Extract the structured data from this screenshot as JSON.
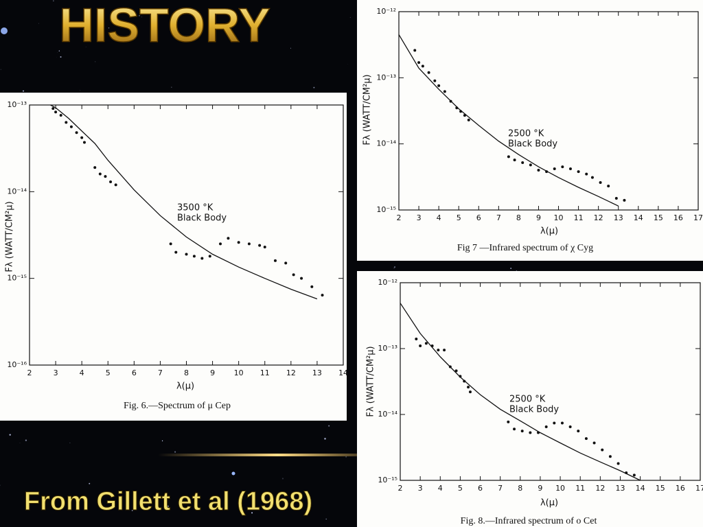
{
  "slide": {
    "title": "HISTORY",
    "citation": "From Gillett et al (1968)"
  },
  "chart_data": [
    {
      "type": "scatter",
      "caption": "Fig. 6.—Spectrum of μ Cep",
      "xlabel": "λ(μ)",
      "ylabel": "Fλ (WATT/CM²μ)",
      "annotation": [
        "3500 °K",
        "Black Body"
      ],
      "log_y": true,
      "xlim": [
        2,
        14
      ],
      "ylim": [
        1e-16,
        1e-13
      ],
      "xticks": [
        2,
        3,
        4,
        5,
        6,
        7,
        8,
        9,
        10,
        11,
        12,
        13,
        14
      ],
      "yticks": [
        {
          "value": 1e-16,
          "label": "10⁻¹⁶"
        },
        {
          "value": 1e-15,
          "label": "10⁻¹⁵"
        },
        {
          "value": 1e-14,
          "label": "10⁻¹⁴"
        },
        {
          "value": 1e-13,
          "label": "10⁻¹³"
        }
      ],
      "series": [
        {
          "mode": "markers",
          "color": "#111",
          "x": [
            2.9,
            3.0,
            3.2,
            3.4,
            3.6,
            3.8,
            4.0,
            4.1,
            4.5,
            4.7,
            4.9,
            5.1,
            5.3,
            7.4,
            7.6,
            8.0,
            8.3,
            8.6,
            8.9,
            9.3,
            9.6,
            10.0,
            10.4,
            10.8,
            11.0,
            11.4,
            11.8,
            12.1,
            12.4,
            12.8,
            13.2
          ],
          "values": [
            9.1e-14,
            8.3e-14,
            7.6e-14,
            6.3e-14,
            5.6e-14,
            4.8e-14,
            4.2e-14,
            3.7e-14,
            1.9e-14,
            1.6e-14,
            1.5e-14,
            1.3e-14,
            1.2e-14,
            2.5e-15,
            2e-15,
            1.9e-15,
            1.8e-15,
            1.7e-15,
            1.8e-15,
            2.5e-15,
            2.9e-15,
            2.6e-15,
            2.5e-15,
            2.4e-15,
            2.3e-15,
            1.6e-15,
            1.5e-15,
            1.1e-15,
            1e-15,
            8e-16,
            6.4e-16
          ]
        },
        {
          "mode": "line",
          "color": "#111",
          "x": [
            2.8,
            3,
            3.5,
            4,
            4.5,
            5,
            6,
            7,
            8,
            9,
            10,
            11,
            12,
            13
          ],
          "values": [
            1e-13,
            9.3e-14,
            7e-14,
            5e-14,
            3.6e-14,
            2.3e-14,
            1.05e-14,
            5.3e-15,
            3e-15,
            1.9e-15,
            1.35e-15,
            1e-15,
            7.5e-16,
            5.8e-16
          ]
        }
      ]
    },
    {
      "type": "scatter",
      "caption": "Fig 7 —Infrared spectrum of χ Cyg",
      "xlabel": "λ(μ)",
      "ylabel": "Fλ (WATT/CM²μ)",
      "annotation": [
        "2500 °K",
        "Black Body"
      ],
      "log_y": true,
      "xlim": [
        2,
        17
      ],
      "ylim": [
        1e-15,
        1e-12
      ],
      "xticks": [
        2,
        3,
        4,
        5,
        6,
        7,
        8,
        9,
        10,
        11,
        12,
        13,
        14,
        15,
        16,
        17
      ],
      "yticks": [
        {
          "value": 1e-15,
          "label": "10⁻¹⁵"
        },
        {
          "value": 1e-14,
          "label": "10⁻¹⁴"
        },
        {
          "value": 1e-13,
          "label": "10⁻¹³"
        },
        {
          "value": 1e-12,
          "label": "10⁻¹²"
        }
      ],
      "series": [
        {
          "mode": "markers",
          "color": "#111",
          "x": [
            2.8,
            3.0,
            3.2,
            3.5,
            3.8,
            4.0,
            4.3,
            4.6,
            4.9,
            5.1,
            5.3,
            5.5,
            7.5,
            7.8,
            8.2,
            8.6,
            9.0,
            9.4,
            9.8,
            10.2,
            10.6,
            11.0,
            11.4,
            11.7,
            12.1,
            12.5,
            12.9,
            13.3
          ],
          "values": [
            2.6e-13,
            1.7e-13,
            1.5e-13,
            1.2e-13,
            9e-14,
            7.6e-14,
            6.2e-14,
            4.4e-14,
            3.5e-14,
            3.1e-14,
            2.7e-14,
            2.3e-14,
            6.4e-15,
            5.7e-15,
            5.2e-15,
            4.8e-15,
            4e-15,
            3.8e-15,
            4.2e-15,
            4.5e-15,
            4.2e-15,
            3.8e-15,
            3.5e-15,
            3.1e-15,
            2.6e-15,
            2.3e-15,
            1.5e-15,
            1.4e-15
          ]
        },
        {
          "mode": "line",
          "color": "#111",
          "x": [
            2,
            3,
            4,
            5,
            6,
            7,
            8,
            9,
            10,
            11,
            12,
            13
          ],
          "values": [
            4.5e-13,
            1.4e-13,
            6.7e-14,
            3.4e-14,
            1.9e-14,
            1.1e-14,
            6.9e-15,
            4.5e-15,
            3.1e-15,
            2.2e-15,
            1.6e-15,
            1.15e-15
          ]
        }
      ]
    },
    {
      "type": "scatter",
      "caption": "Fig. 8.—Infrared spectrum of ο Cet",
      "xlabel": "λ(μ)",
      "ylabel": "Fλ (WATT/CM²μ)",
      "annotation": [
        "2500 °K",
        "Black Body"
      ],
      "log_y": true,
      "xlim": [
        2,
        17
      ],
      "ylim": [
        1e-15,
        1e-12
      ],
      "xticks": [
        2,
        3,
        4,
        5,
        6,
        7,
        8,
        9,
        10,
        11,
        12,
        13,
        14,
        15,
        16,
        17
      ],
      "yticks": [
        {
          "value": 1e-15,
          "label": "10⁻¹⁵"
        },
        {
          "value": 1e-14,
          "label": "10⁻¹⁴"
        },
        {
          "value": 1e-13,
          "label": "10⁻¹³"
        },
        {
          "value": 1e-12,
          "label": "10⁻¹²"
        }
      ],
      "series": [
        {
          "mode": "markers",
          "color": "#111",
          "x": [
            2.8,
            3.0,
            3.3,
            3.6,
            3.9,
            4.2,
            4.5,
            4.8,
            5.0,
            5.2,
            5.4,
            5.5,
            7.4,
            7.7,
            8.1,
            8.5,
            8.9,
            9.3,
            9.7,
            10.1,
            10.5,
            10.9,
            11.3,
            11.7,
            12.1,
            12.5,
            12.9,
            13.3,
            13.7
          ],
          "values": [
            1.4e-13,
            1.1e-13,
            1.2e-13,
            1.1e-13,
            9.5e-14,
            9.5e-14,
            5.3e-14,
            4.6e-14,
            3.8e-14,
            3.2e-14,
            2.6e-14,
            2.2e-14,
            7.7e-15,
            6e-15,
            5.6e-15,
            5.3e-15,
            5.3e-15,
            6.5e-15,
            7.4e-15,
            7.4e-15,
            6.5e-15,
            5.6e-15,
            4.3e-15,
            3.7e-15,
            2.9e-15,
            2.3e-15,
            1.8e-15,
            1.3e-15,
            1.2e-15
          ]
        },
        {
          "mode": "line",
          "color": "#111",
          "x": [
            2,
            3,
            4,
            5,
            6,
            7,
            8,
            9,
            10,
            11,
            12,
            13,
            14
          ],
          "values": [
            4.9e-13,
            1.7e-13,
            7.5e-14,
            3.7e-14,
            2e-14,
            1.2e-14,
            8e-15,
            5.3e-15,
            3.7e-15,
            2.6e-15,
            1.9e-15,
            1.4e-15,
            1e-15
          ]
        }
      ]
    }
  ]
}
